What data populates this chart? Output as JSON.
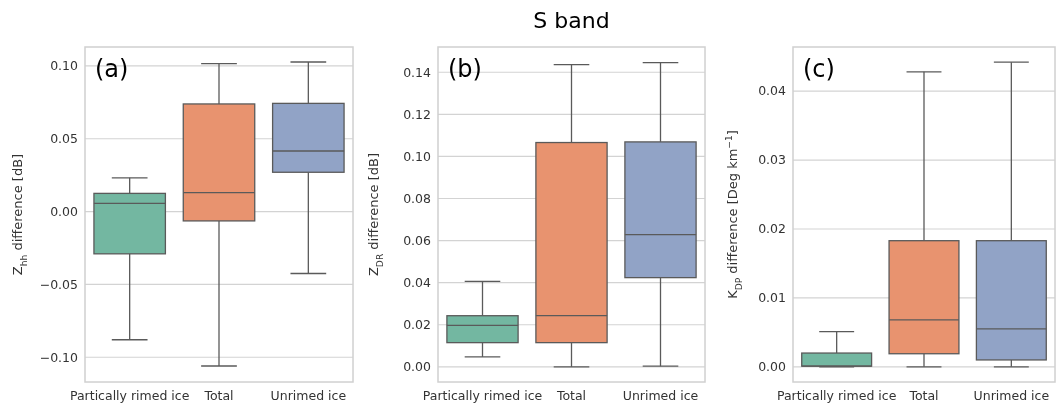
{
  "chart_data": [
    {
      "type": "box",
      "ylabel": "Z$_{hh}$ difference [dB]",
      "categories": [
        "Partically rimed ice",
        "Total",
        "Unrimed ice"
      ],
      "colors": [
        "#73b7a1",
        "#e8936f",
        "#91a3c6"
      ],
      "ylim": [
        -0.117,
        0.113
      ],
      "yticks": [
        {
          "value": -0.1,
          "label": "−0.10"
        },
        {
          "value": -0.05,
          "label": "−0.05"
        },
        {
          "value": 0,
          "label": "0.00"
        },
        {
          "value": 0.05,
          "label": "0.05"
        },
        {
          "value": 0.1,
          "label": "0.10"
        }
      ],
      "grid": "y",
      "annotations": [
        "(a)"
      ],
      "boxes": [
        {
          "low": -0.088,
          "q1": -0.029,
          "median": 0.0057,
          "q3": 0.0125,
          "high": 0.0232
        },
        {
          "low": -0.106,
          "q1": -0.0064,
          "median": 0.013,
          "q3": 0.0739,
          "high": 0.1016
        },
        {
          "low": -0.0425,
          "q1": 0.027,
          "median": 0.0416,
          "q3": 0.0743,
          "high": 0.1027
        }
      ]
    },
    {
      "type": "box",
      "title": "S band",
      "ylabel": "Z$_{DR}$ difference [dB]",
      "categories": [
        "Partically rimed ice",
        "Total",
        "Unrimed ice"
      ],
      "colors": [
        "#73b7a1",
        "#e8936f",
        "#91a3c6"
      ],
      "ylim": [
        -0.0072,
        0.152
      ],
      "yticks": [
        {
          "value": 0,
          "label": "0.00"
        },
        {
          "value": 0.02,
          "label": "0.02"
        },
        {
          "value": 0.04,
          "label": "0.04"
        },
        {
          "value": 0.06,
          "label": "0.06"
        },
        {
          "value": 0.08,
          "label": "0.08"
        },
        {
          "value": 0.1,
          "label": "0.10"
        },
        {
          "value": 0.12,
          "label": "0.12"
        },
        {
          "value": 0.14,
          "label": "0.14"
        }
      ],
      "grid": "y",
      "annotations": [
        "(b)"
      ],
      "boxes": [
        {
          "low": 0.0047,
          "q1": 0.0115,
          "median": 0.0197,
          "q3": 0.0243,
          "high": 0.0406
        },
        {
          "low": 0,
          "q1": 0.0115,
          "median": 0.0243,
          "q3": 0.1066,
          "high": 0.1436
        },
        {
          "low": 0.0003,
          "q1": 0.0424,
          "median": 0.0628,
          "q3": 0.1069,
          "high": 0.1446
        }
      ]
    },
    {
      "type": "box",
      "ylabel": "K$_{DP}$ difference [Deg km$^{−1}$]",
      "categories": [
        "Partically rimed ice",
        "Total",
        "Unrimed ice"
      ],
      "colors": [
        "#73b7a1",
        "#e8936f",
        "#91a3c6"
      ],
      "ylim": [
        -0.0022,
        0.0464
      ],
      "yticks": [
        {
          "value": 0,
          "label": "0.00"
        },
        {
          "value": 0.01,
          "label": "0.01"
        },
        {
          "value": 0.02,
          "label": "0.02"
        },
        {
          "value": 0.03,
          "label": "0.03"
        },
        {
          "value": 0.04,
          "label": "0.04"
        }
      ],
      "grid": "y",
      "annotations": [
        "(c)"
      ],
      "boxes": [
        {
          "low": 0,
          "q1": 0.0001,
          "median": 0.0001,
          "q3": 0.002,
          "high": 0.0051
        },
        {
          "low": 0,
          "q1": 0.0019,
          "median": 0.0068,
          "q3": 0.0183,
          "high": 0.0428
        },
        {
          "low": 0,
          "q1": 0.001,
          "median": 0.0055,
          "q3": 0.0183,
          "high": 0.0442
        }
      ]
    }
  ]
}
